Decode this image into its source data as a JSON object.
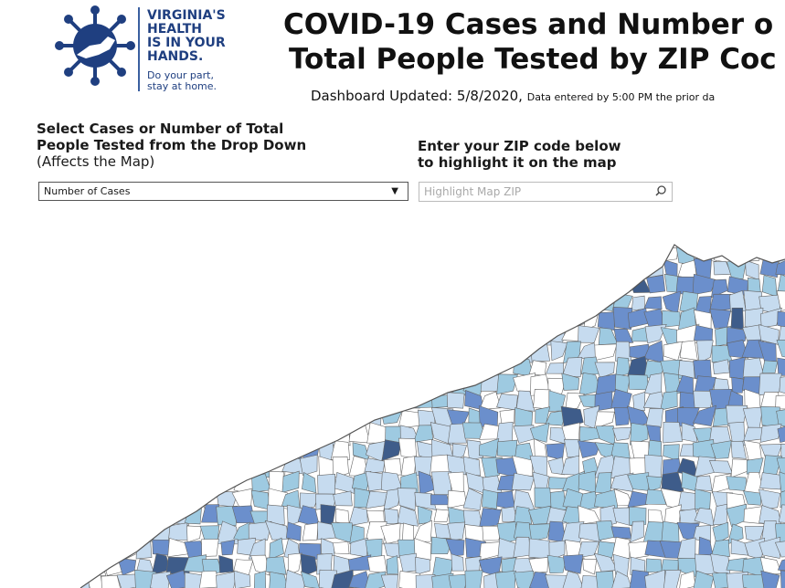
{
  "logo": {
    "lines": [
      "VIRGINIA'S",
      "HEALTH",
      "IS IN YOUR",
      "HANDS."
    ],
    "sub_lines": [
      "Do your part,",
      "stay at home."
    ],
    "icon": "virus-icon",
    "color": "#1f3f80"
  },
  "title": {
    "line1": "COVID-19 Cases and Number o",
    "line2": "Total People Tested by ZIP Coc"
  },
  "updated": {
    "main": "Dashboard Updated: 5/8/2020,",
    "small": "Data entered by 5:00 PM the prior da"
  },
  "controls": {
    "select_label_line1": "Select Cases or Number of Total",
    "select_label_line2": "People Tested from the Drop Down",
    "select_label_note": "(Affects the Map)",
    "dropdown_value": "Number of Cases",
    "dropdown_arrow": "▼",
    "zip_label_line1": "Enter your ZIP code below",
    "zip_label_line2": "to highlight it on the map",
    "zip_placeholder": "Highlight Map ZIP",
    "zip_icon": "search-icon"
  },
  "map": {
    "region": "Virginia ZIP code choropleth",
    "colors": {
      "none": "#ffffff",
      "low": "#c6dbef",
      "mid": "#9ecae1",
      "high": "#6b8fcc",
      "highest": "#3e5c8a",
      "border": "#666666"
    }
  }
}
